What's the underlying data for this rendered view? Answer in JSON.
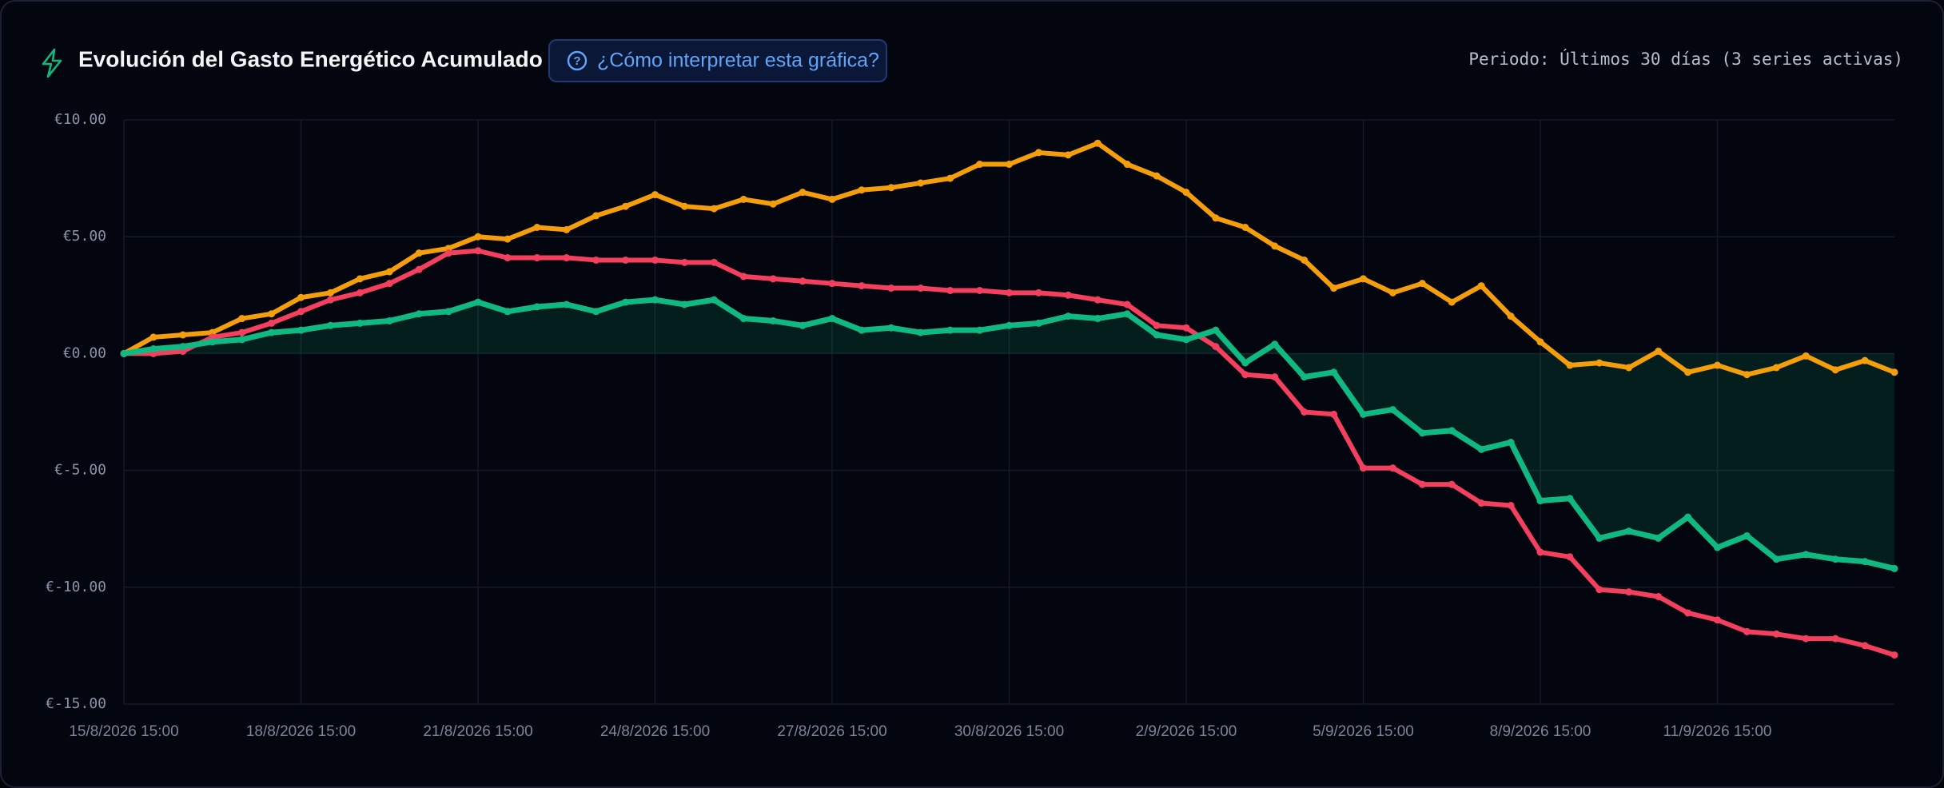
{
  "chart_data": {
    "type": "line",
    "title": "Evolución del Gasto Energético Acumulado",
    "subtitle": "Periodo: Últimos 30 días (3 series activas)",
    "annotations": [
      "¿Cómo interpretar esta gráfica?"
    ],
    "categories": [
      "15/8/2026 15:00",
      null,
      null,
      null,
      null,
      null,
      "18/8/2026 15:00",
      null,
      null,
      null,
      null,
      null,
      "21/8/2026 15:00",
      null,
      null,
      null,
      null,
      null,
      "24/8/2026 15:00",
      null,
      null,
      null,
      null,
      null,
      "27/8/2026 15:00",
      null,
      null,
      null,
      null,
      null,
      "30/8/2026 15:00",
      null,
      null,
      null,
      null,
      null,
      "2/9/2026 15:00",
      null,
      null,
      null,
      null,
      null,
      "5/9/2026 15:00",
      null,
      null,
      null,
      null,
      null,
      "8/9/2026 15:00",
      null,
      null,
      null,
      null,
      null,
      "11/9/2026 15:00",
      null,
      null,
      null,
      null,
      null,
      null
    ],
    "ylim": [
      -15,
      10
    ],
    "yticks": [
      {
        "value": 10,
        "label": "€10.00"
      },
      {
        "value": 5,
        "label": "€5.00"
      },
      {
        "value": 0,
        "label": "€0.00"
      },
      {
        "value": -5,
        "label": "€-5.00"
      },
      {
        "value": -10,
        "label": "€-10.00"
      },
      {
        "value": -15,
        "label": "€-15.00"
      }
    ],
    "grid": true,
    "series": [
      {
        "color": "#f59e0b",
        "values": [
          0,
          0.7,
          0.8,
          0.9,
          1.5,
          1.7,
          2.4,
          2.6,
          3.2,
          3.5,
          4.3,
          4.5,
          5.0,
          4.9,
          5.4,
          5.3,
          5.9,
          6.3,
          6.8,
          6.3,
          6.2,
          6.6,
          6.4,
          6.9,
          6.6,
          7.0,
          7.1,
          7.3,
          7.5,
          8.1,
          8.1,
          8.6,
          8.5,
          9.0,
          8.1,
          7.6,
          6.9,
          5.8,
          5.4,
          4.6,
          4.0,
          2.8,
          3.2,
          2.6,
          3.0,
          2.2,
          2.9,
          1.6,
          0.5,
          -0.5,
          -0.4,
          -0.6,
          0.1,
          -0.8,
          -0.5,
          -0.9,
          -0.6,
          -0.1,
          -0.7,
          -0.3,
          -0.8
        ]
      },
      {
        "color": "#f43f5e",
        "values": [
          0,
          0,
          0.1,
          0.7,
          0.9,
          1.3,
          1.8,
          2.3,
          2.6,
          3.0,
          3.6,
          4.3,
          4.4,
          4.1,
          4.1,
          4.1,
          4.0,
          4.0,
          4.0,
          3.9,
          3.9,
          3.3,
          3.2,
          3.1,
          3.0,
          2.9,
          2.8,
          2.8,
          2.7,
          2.7,
          2.6,
          2.6,
          2.5,
          2.3,
          2.1,
          1.2,
          1.1,
          0.3,
          -0.9,
          -1.0,
          -2.5,
          -2.6,
          -4.9,
          -4.9,
          -5.6,
          -5.6,
          -6.4,
          -6.5,
          -8.5,
          -8.7,
          -10.1,
          -10.2,
          -10.4,
          -11.1,
          -11.4,
          -11.9,
          -12.0,
          -12.2,
          -12.2,
          -12.5,
          -12.9
        ]
      },
      {
        "color": "#10b981",
        "fill": true,
        "values": [
          0,
          0.2,
          0.3,
          0.5,
          0.6,
          0.9,
          1.0,
          1.2,
          1.3,
          1.4,
          1.7,
          1.8,
          2.2,
          1.8,
          2.0,
          2.1,
          1.8,
          2.2,
          2.3,
          2.1,
          2.3,
          1.5,
          1.4,
          1.2,
          1.5,
          1.0,
          1.1,
          0.9,
          1.0,
          1.0,
          1.2,
          1.3,
          1.6,
          1.5,
          1.7,
          0.8,
          0.6,
          1.0,
          -0.4,
          0.4,
          -1.0,
          -0.8,
          -2.6,
          -2.4,
          -3.4,
          -3.3,
          -4.1,
          -3.8,
          -6.3,
          -6.2,
          -7.9,
          -7.6,
          -7.9,
          -7.0,
          -8.3,
          -7.8,
          -8.8,
          -8.6,
          -8.8,
          -8.9,
          -9.2
        ]
      }
    ]
  }
}
